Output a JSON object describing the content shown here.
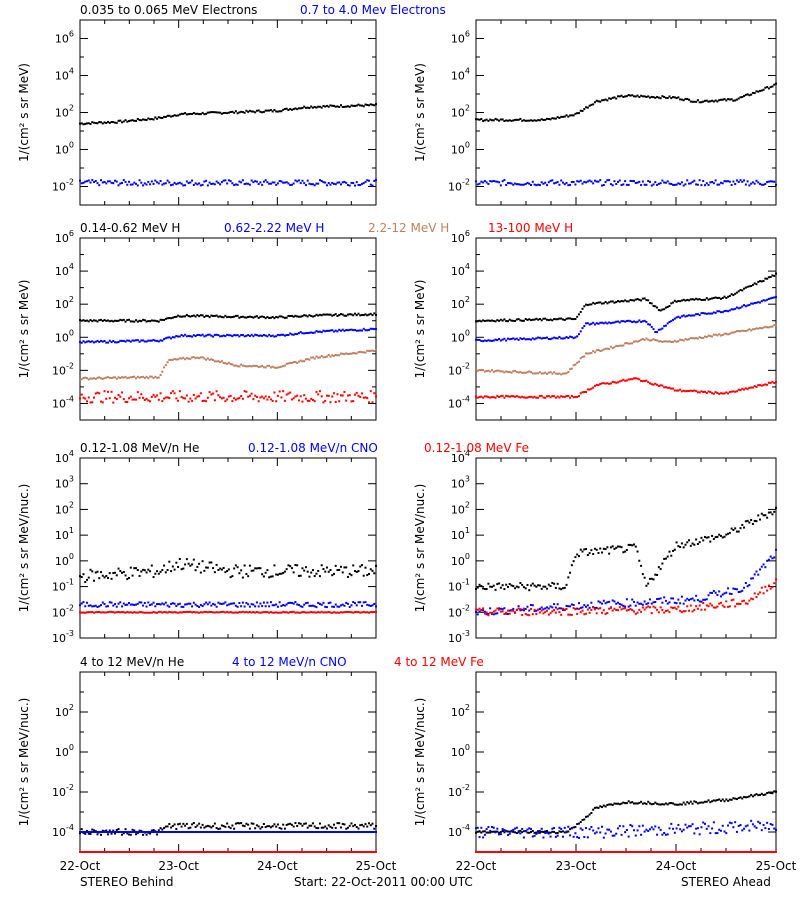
{
  "colors": {
    "black": "#000000",
    "blue": "#0000ff",
    "tan": "#c08060",
    "red": "#ff0000"
  },
  "footer": {
    "left": "STEREO Behind",
    "center": "Start: 22-Oct-2011 00:00 UTC",
    "right": "STEREO Ahead"
  },
  "x_tick_labels": [
    "22-Oct",
    "23-Oct",
    "24-Oct",
    "25-Oct"
  ],
  "chart_data": [
    {
      "type": "scatter",
      "panel": "electrons-behind",
      "row": 0,
      "col": 0,
      "ylabel": "1/(cm² s sr MeV)",
      "yscale": "log",
      "ylim_exp": [
        -3,
        7
      ],
      "ytick_exps": [
        -2,
        0,
        2,
        4,
        6
      ],
      "legend": [
        {
          "text": "0.035 to 0.065 MeV Electrons",
          "color": "black"
        },
        {
          "text": "0.7 to 4.0 Mev Electrons",
          "color": "blue"
        }
      ],
      "x_days": [
        0,
        3
      ],
      "series": [
        {
          "name": "0.035 to 0.065 MeV Electrons",
          "color": "black",
          "mode": "line",
          "points_log": [
            [
              0,
              1.4
            ],
            [
              0.4,
              1.5
            ],
            [
              0.8,
              1.7
            ],
            [
              1.0,
              1.9
            ],
            [
              1.5,
              2.0
            ],
            [
              2.0,
              2.1
            ],
            [
              2.3,
              2.3
            ],
            [
              3.0,
              2.4
            ]
          ]
        },
        {
          "name": "0.7 to 4.0 Mev Electrons",
          "color": "blue",
          "mode": "noise",
          "points_log": [
            [
              0,
              -1.8
            ],
            [
              3,
              -1.8
            ]
          ],
          "spread": 0.15
        }
      ]
    },
    {
      "type": "scatter",
      "panel": "electrons-ahead",
      "row": 0,
      "col": 1,
      "ylabel": "1/(cm² s sr MeV)",
      "yscale": "log",
      "ylim_exp": [
        -3,
        7
      ],
      "ytick_exps": [
        -2,
        0,
        2,
        4,
        6
      ],
      "legend": [],
      "x_days": [
        0,
        3
      ],
      "series": [
        {
          "name": "0.035 to 0.065 MeV Electrons",
          "color": "black",
          "mode": "line",
          "points_log": [
            [
              0,
              1.6
            ],
            [
              0.7,
              1.6
            ],
            [
              1.0,
              1.9
            ],
            [
              1.2,
              2.6
            ],
            [
              1.5,
              2.9
            ],
            [
              2.0,
              2.8
            ],
            [
              2.2,
              2.6
            ],
            [
              2.6,
              2.7
            ],
            [
              3.0,
              3.5
            ]
          ]
        },
        {
          "name": "0.7 to 4.0 Mev Electrons",
          "color": "blue",
          "mode": "noise",
          "points_log": [
            [
              0,
              -1.8
            ],
            [
              3,
              -1.8
            ]
          ],
          "spread": 0.15
        }
      ]
    },
    {
      "type": "scatter",
      "panel": "protons-behind",
      "row": 1,
      "col": 0,
      "ylabel": "1/(cm² s sr MeV)",
      "yscale": "log",
      "ylim_exp": [
        -5,
        6
      ],
      "ytick_exps": [
        -4,
        -2,
        0,
        2,
        4,
        6
      ],
      "legend": [
        {
          "text": "0.14-0.62 MeV H",
          "color": "black"
        },
        {
          "text": "0.62-2.22 MeV H",
          "color": "blue"
        },
        {
          "text": "2.2-12 MeV H",
          "color": "tan"
        },
        {
          "text": "13-100 MeV H",
          "color": "red"
        }
      ],
      "x_days": [
        0,
        3
      ],
      "series": [
        {
          "name": "0.14-0.62 MeV H",
          "color": "black",
          "mode": "line",
          "points_log": [
            [
              0,
              1.0
            ],
            [
              0.8,
              1.0
            ],
            [
              1.0,
              1.3
            ],
            [
              2.0,
              1.2
            ],
            [
              2.3,
              1.3
            ],
            [
              3.0,
              1.4
            ]
          ]
        },
        {
          "name": "0.62-2.22 MeV H",
          "color": "blue",
          "mode": "line",
          "points_log": [
            [
              0,
              -0.3
            ],
            [
              0.8,
              -0.2
            ],
            [
              1.0,
              0.1
            ],
            [
              2.0,
              0.1
            ],
            [
              2.3,
              0.3
            ],
            [
              3.0,
              0.5
            ]
          ]
        },
        {
          "name": "2.2-12 MeV H",
          "color": "tan",
          "mode": "line",
          "points_log": [
            [
              0,
              -2.5
            ],
            [
              0.8,
              -2.4
            ],
            [
              0.9,
              -1.4
            ],
            [
              1.2,
              -1.2
            ],
            [
              1.6,
              -1.7
            ],
            [
              2.0,
              -1.8
            ],
            [
              2.4,
              -1.2
            ],
            [
              3.0,
              -0.8
            ]
          ]
        },
        {
          "name": "13-100 MeV H",
          "color": "red",
          "mode": "noise",
          "points_log": [
            [
              0,
              -3.6
            ],
            [
              3,
              -3.6
            ]
          ],
          "spread": 0.35
        }
      ]
    },
    {
      "type": "scatter",
      "panel": "protons-ahead",
      "row": 1,
      "col": 1,
      "ylabel": "1/(cm² s sr MeV)",
      "yscale": "log",
      "ylim_exp": [
        -5,
        6
      ],
      "ytick_exps": [
        -4,
        -2,
        0,
        2,
        4,
        6
      ],
      "legend": [],
      "x_days": [
        0,
        3
      ],
      "series": [
        {
          "name": "0.14-0.62 MeV H",
          "color": "black",
          "mode": "line",
          "points_log": [
            [
              0,
              1.0
            ],
            [
              1.0,
              1.1
            ],
            [
              1.1,
              2.0
            ],
            [
              1.7,
              2.3
            ],
            [
              1.85,
              1.6
            ],
            [
              2.0,
              2.2
            ],
            [
              2.5,
              2.4
            ],
            [
              3.0,
              3.8
            ]
          ]
        },
        {
          "name": "0.62-2.22 MeV H",
          "color": "blue",
          "mode": "line",
          "points_log": [
            [
              0,
              -0.2
            ],
            [
              1.0,
              0
            ],
            [
              1.1,
              0.8
            ],
            [
              1.7,
              1.0
            ],
            [
              1.8,
              0.3
            ],
            [
              2.0,
              1.2
            ],
            [
              2.5,
              1.6
            ],
            [
              3.0,
              2.4
            ]
          ]
        },
        {
          "name": "2.2-12 MeV H",
          "color": "tan",
          "mode": "line",
          "points_log": [
            [
              0,
              -2.0
            ],
            [
              0.9,
              -2.2
            ],
            [
              1.1,
              -1.0
            ],
            [
              1.7,
              -0.1
            ],
            [
              1.9,
              -0.3
            ],
            [
              2.5,
              0.2
            ],
            [
              3.0,
              0.7
            ]
          ]
        },
        {
          "name": "13-100 MeV H",
          "color": "red",
          "mode": "line",
          "points_log": [
            [
              0,
              -3.6
            ],
            [
              1.0,
              -3.6
            ],
            [
              1.2,
              -2.9
            ],
            [
              1.6,
              -2.5
            ],
            [
              2.0,
              -3.2
            ],
            [
              2.5,
              -3.4
            ],
            [
              3.0,
              -2.7
            ]
          ]
        }
      ]
    },
    {
      "type": "scatter",
      "panel": "heavy-low-behind",
      "row": 2,
      "col": 0,
      "ylabel": "1/(cm² s sr MeV/nuc.)",
      "yscale": "log",
      "ylim_exp": [
        -3,
        4
      ],
      "ytick_exps": [
        -3,
        -2,
        -1,
        0,
        1,
        2,
        3,
        4
      ],
      "legend": [
        {
          "text": "0.12-1.08 MeV/n He",
          "color": "black"
        },
        {
          "text": "0.12-1.08 MeV/n CNO",
          "color": "blue"
        },
        {
          "text": "0.12-1.08 MeV Fe",
          "color": "red"
        }
      ],
      "x_days": [
        0,
        3
      ],
      "series": [
        {
          "name": "0.12-1.08 MeV/n He",
          "color": "black",
          "mode": "noise",
          "points_log": [
            [
              0,
              -0.6
            ],
            [
              0.8,
              -0.4
            ],
            [
              1.0,
              -0.1
            ],
            [
              1.5,
              -0.4
            ],
            [
              3.0,
              -0.4
            ]
          ],
          "spread": 0.25
        },
        {
          "name": "0.12-1.08 MeV/n CNO",
          "color": "blue",
          "mode": "noise",
          "points_log": [
            [
              0,
              -1.7
            ],
            [
              3,
              -1.7
            ]
          ],
          "spread": 0.1
        },
        {
          "name": "0.12-1.08 MeV Fe",
          "color": "red",
          "mode": "noise",
          "points_log": [
            [
              0,
              -2.0
            ],
            [
              3,
              -2.0
            ]
          ],
          "spread": 0.02
        }
      ]
    },
    {
      "type": "scatter",
      "panel": "heavy-low-ahead",
      "row": 2,
      "col": 1,
      "ylabel": "1/(cm² s sr MeV/nuc.)",
      "yscale": "log",
      "ylim_exp": [
        -3,
        4
      ],
      "ytick_exps": [
        -3,
        -2,
        -1,
        0,
        1,
        2,
        3,
        4
      ],
      "legend": [],
      "x_days": [
        0,
        3
      ],
      "series": [
        {
          "name": "0.12-1.08 MeV/n He",
          "color": "black",
          "mode": "noise",
          "points_log": [
            [
              0,
              -1.0
            ],
            [
              0.9,
              -1.0
            ],
            [
              1.0,
              0.3
            ],
            [
              1.6,
              0.5
            ],
            [
              1.7,
              -1.0
            ],
            [
              2.0,
              0.6
            ],
            [
              2.5,
              1.0
            ],
            [
              3.0,
              2.0
            ]
          ],
          "spread": 0.15
        },
        {
          "name": "0.12-1.08 MeV/n CNO",
          "color": "blue",
          "mode": "noise",
          "points_log": [
            [
              0,
              -2.0
            ],
            [
              1.2,
              -1.7
            ],
            [
              2.2,
              -1.5
            ],
            [
              2.7,
              -1.0
            ],
            [
              3.0,
              0.3
            ]
          ],
          "spread": 0.15
        },
        {
          "name": "0.12-1.08 MeV Fe",
          "color": "red",
          "mode": "noise",
          "points_log": [
            [
              0,
              -2.0
            ],
            [
              2.0,
              -1.9
            ],
            [
              2.7,
              -1.6
            ],
            [
              3.0,
              -0.8
            ]
          ],
          "spread": 0.15
        }
      ]
    },
    {
      "type": "scatter",
      "panel": "heavy-high-behind",
      "row": 3,
      "col": 0,
      "ylabel": "1/(cm² s sr MeV/nuc.)",
      "yscale": "log",
      "ylim_exp": [
        -5,
        4
      ],
      "ytick_exps": [
        -4,
        -2,
        0,
        2
      ],
      "legend": [
        {
          "text": "4 to 12 MeV/n He",
          "color": "black"
        },
        {
          "text": "4 to 12 MeV/n CNO",
          "color": "blue"
        },
        {
          "text": "4 to 12 MeV Fe",
          "color": "red"
        }
      ],
      "x_days": [
        0,
        3
      ],
      "series": [
        {
          "name": "4 to 12 MeV/n He",
          "color": "black",
          "mode": "noise",
          "points_log": [
            [
              0,
              -4.0
            ],
            [
              0.8,
              -4.0
            ],
            [
              0.9,
              -3.7
            ],
            [
              3.0,
              -3.7
            ]
          ],
          "spread": 0.15
        },
        {
          "name": "4 to 12 MeV/n CNO",
          "color": "blue",
          "mode": "noise",
          "points_log": [
            [
              0,
              -4.0
            ],
            [
              3.0,
              -4.0
            ]
          ],
          "spread": 0.0
        },
        {
          "name": "4 to 12 MeV Fe",
          "color": "red",
          "mode": "noise",
          "points_log": [
            [
              0,
              -5.0
            ],
            [
              3.0,
              -5.0
            ]
          ],
          "spread": 0.0
        }
      ]
    },
    {
      "type": "scatter",
      "panel": "heavy-high-ahead",
      "row": 3,
      "col": 1,
      "ylabel": "1/(cm² s sr MeV/nuc.)",
      "yscale": "log",
      "ylim_exp": [
        -5,
        4
      ],
      "ytick_exps": [
        -4,
        -2,
        0,
        2
      ],
      "legend": [],
      "x_days": [
        0,
        3
      ],
      "series": [
        {
          "name": "4 to 12 MeV/n He",
          "color": "black",
          "mode": "line",
          "points_log": [
            [
              0,
              -4.0
            ],
            [
              0.9,
              -4.0
            ],
            [
              1.0,
              -3.7
            ],
            [
              1.2,
              -2.8
            ],
            [
              1.5,
              -2.5
            ],
            [
              2.0,
              -2.6
            ],
            [
              2.5,
              -2.4
            ],
            [
              3.0,
              -2.0
            ]
          ]
        },
        {
          "name": "4 to 12 MeV/n CNO",
          "color": "blue",
          "mode": "noise",
          "points_log": [
            [
              0,
              -4.0
            ],
            [
              1.2,
              -4.0
            ],
            [
              3.0,
              -3.7
            ]
          ],
          "spread": 0.3
        },
        {
          "name": "4 to 12 MeV Fe",
          "color": "red",
          "mode": "noise",
          "points_log": [
            [
              0,
              -5.0
            ],
            [
              3.0,
              -5.0
            ]
          ],
          "spread": 0.0
        }
      ]
    }
  ]
}
